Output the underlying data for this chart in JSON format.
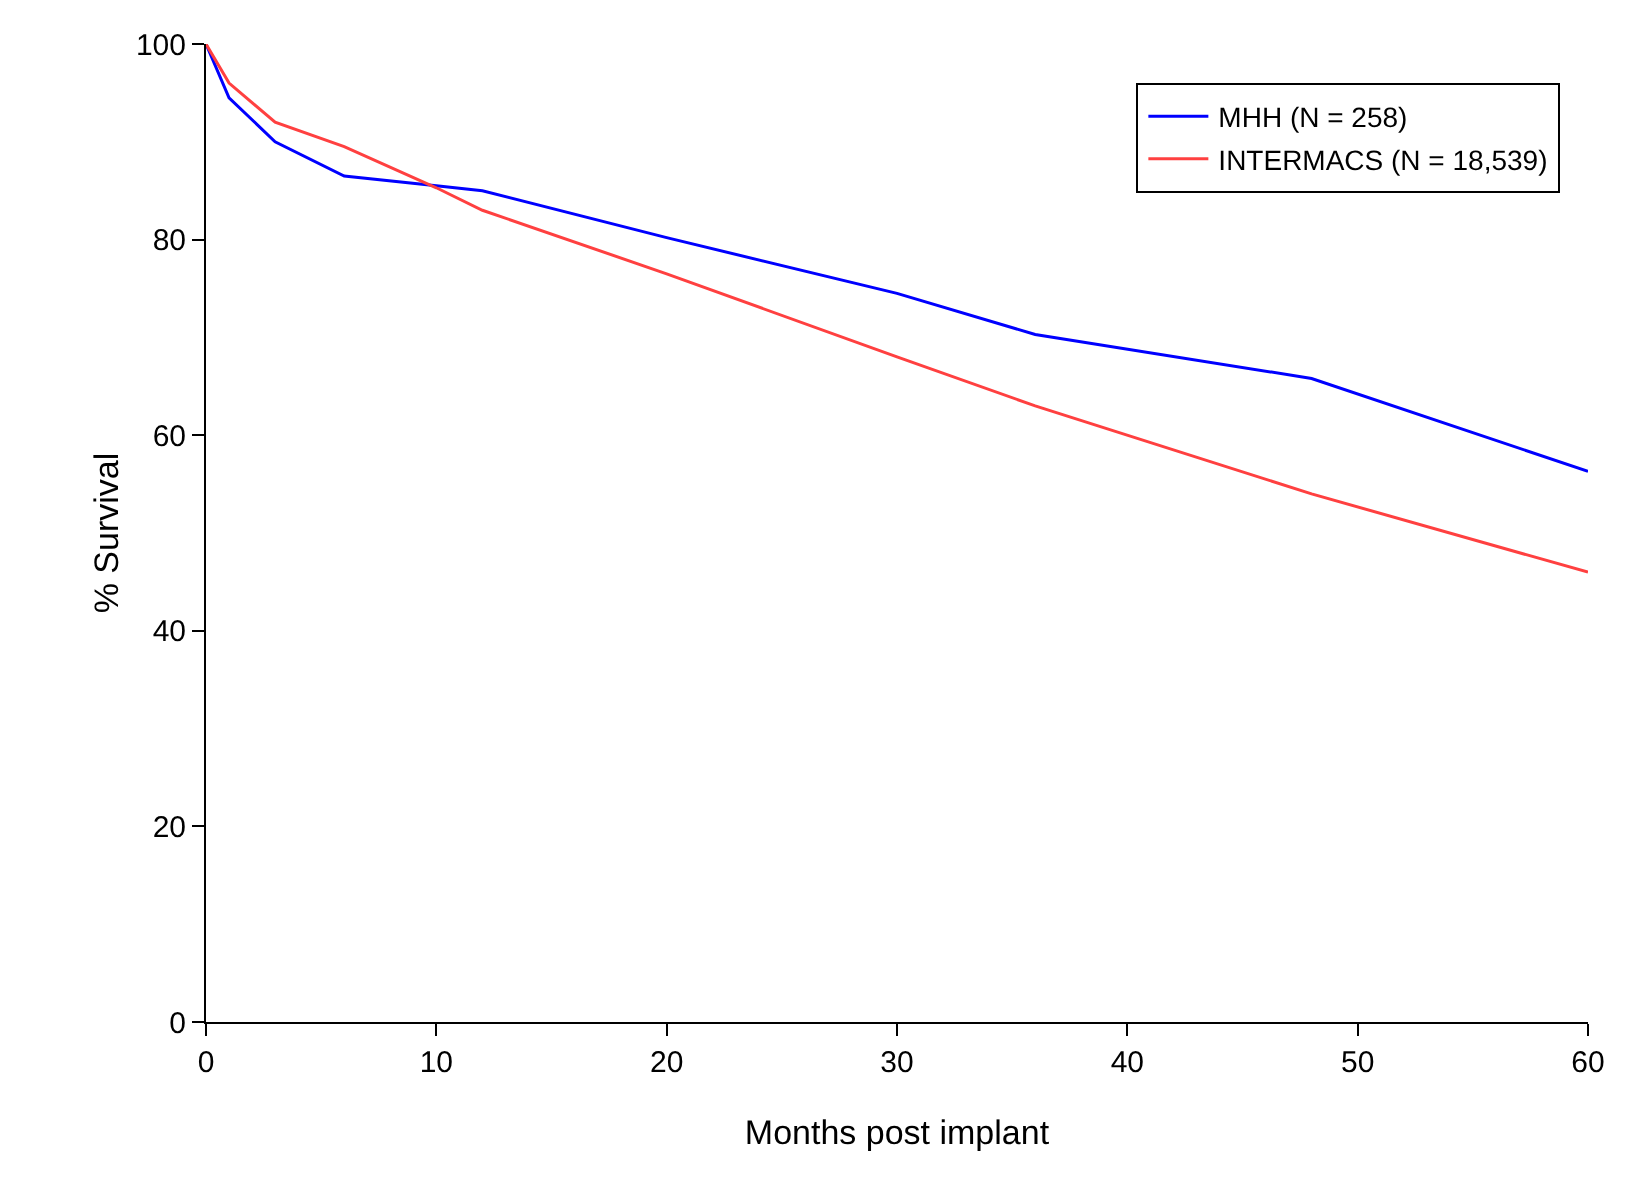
{
  "chart_data": {
    "type": "line",
    "xlabel": "Months post implant",
    "ylabel": "% Survival",
    "xlim": [
      0,
      60
    ],
    "xticks": [
      0,
      10,
      20,
      30,
      40,
      50,
      60
    ],
    "ylim": [
      0,
      100
    ],
    "yticks": [
      0,
      20,
      40,
      60,
      80,
      100
    ],
    "grid": false,
    "legend": "top right",
    "marker": "none",
    "line_style": "solid",
    "series": [
      {
        "name": "MHH (N = 258)",
        "color": "#0000ff",
        "x": [
          0,
          1,
          3,
          6,
          10,
          12,
          20,
          30,
          36,
          48,
          60
        ],
        "values": [
          100,
          94.5,
          90,
          86.5,
          85.5,
          85,
          80.2,
          74.5,
          70.3,
          65.8,
          56.3
        ]
      },
      {
        "name": "INTERMACS (N = 18,539)",
        "color": "#ff4040",
        "x": [
          0,
          1,
          3,
          6,
          10,
          12,
          20,
          30,
          36,
          48,
          60
        ],
        "values": [
          100,
          96,
          92,
          89.5,
          85.3,
          83,
          76.5,
          68,
          63,
          54,
          46
        ]
      }
    ]
  }
}
